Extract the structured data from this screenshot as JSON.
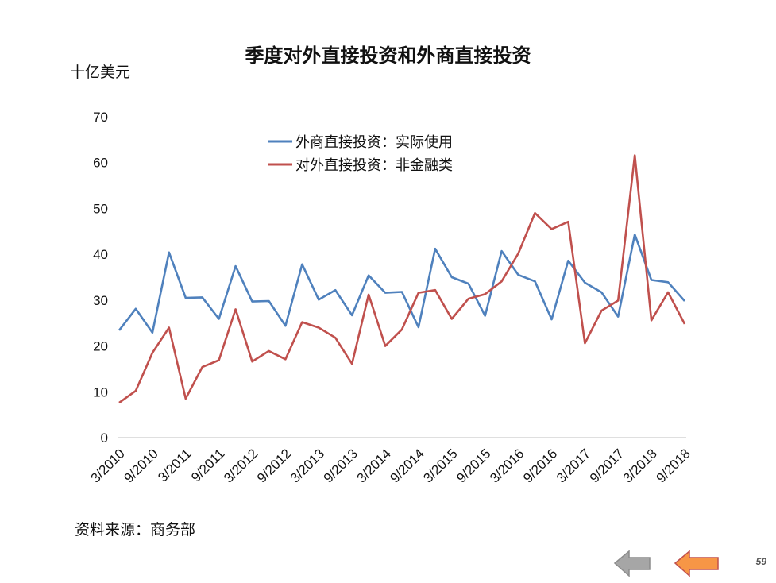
{
  "page": {
    "title": "季度对外直接投资和外商直接投资",
    "unit_label": "十亿美元",
    "source": "资料来源：商务部",
    "page_number": "59"
  },
  "nav": {
    "back_icon": "arrow-left-gray-icon",
    "forward_icon": "arrow-left-orange-icon"
  },
  "colors": {
    "fdi": "#4F81BD",
    "odi": "#C0504D",
    "axis": "#BFBFBF",
    "back": "#A6A6A6",
    "forward": "#F79646"
  },
  "chart_data": {
    "type": "line",
    "title": "季度对外直接投资和外商直接投资",
    "ylabel": "十亿美元",
    "ylim": [
      0,
      70
    ],
    "yticks": [
      0,
      10,
      20,
      30,
      40,
      50,
      60,
      70
    ],
    "grid": false,
    "legend_position": "top-center",
    "x": [
      "3/2010",
      "6/2010",
      "9/2010",
      "12/2010",
      "3/2011",
      "6/2011",
      "9/2011",
      "12/2011",
      "3/2012",
      "6/2012",
      "9/2012",
      "12/2012",
      "3/2013",
      "6/2013",
      "9/2013",
      "12/2013",
      "3/2014",
      "6/2014",
      "9/2014",
      "12/2014",
      "3/2015",
      "6/2015",
      "9/2015",
      "12/2015",
      "3/2016",
      "6/2016",
      "9/2016",
      "12/2016",
      "3/2017",
      "6/2017",
      "9/2017",
      "12/2017",
      "3/2018",
      "6/2018",
      "9/2018"
    ],
    "xtick_labels": [
      "3/2010",
      "9/2010",
      "3/2011",
      "9/2011",
      "3/2012",
      "9/2012",
      "3/2013",
      "9/2013",
      "3/2014",
      "9/2014",
      "3/2015",
      "9/2015",
      "3/2016",
      "9/2016",
      "3/2017",
      "9/2017",
      "3/2018",
      "9/2018"
    ],
    "series": [
      {
        "name": "外商直接投资：实际使用",
        "color": "#4F81BD",
        "values": [
          23.4,
          28.1,
          22.9,
          40.4,
          30.5,
          30.6,
          25.9,
          37.4,
          29.7,
          29.8,
          24.4,
          37.8,
          30.1,
          32.2,
          26.7,
          35.4,
          31.6,
          31.8,
          24.1,
          41.2,
          35.0,
          33.6,
          26.6,
          40.7,
          35.5,
          34.1,
          25.8,
          38.6,
          33.8,
          31.7,
          26.4,
          44.3,
          34.4,
          33.9,
          29.8
        ]
      },
      {
        "name": "对外直接投资：非金融类",
        "color": "#C0504D",
        "values": [
          7.6,
          10.2,
          18.5,
          24.0,
          8.5,
          15.4,
          16.9,
          28.0,
          16.6,
          18.9,
          17.1,
          25.2,
          24.0,
          21.8,
          16.1,
          31.2,
          20.0,
          23.6,
          31.6,
          32.2,
          25.9,
          30.3,
          31.3,
          34.1,
          40.2,
          49.0,
          45.5,
          47.1,
          20.6,
          27.7,
          29.9,
          61.6,
          25.6,
          31.7,
          24.8
        ]
      }
    ]
  }
}
